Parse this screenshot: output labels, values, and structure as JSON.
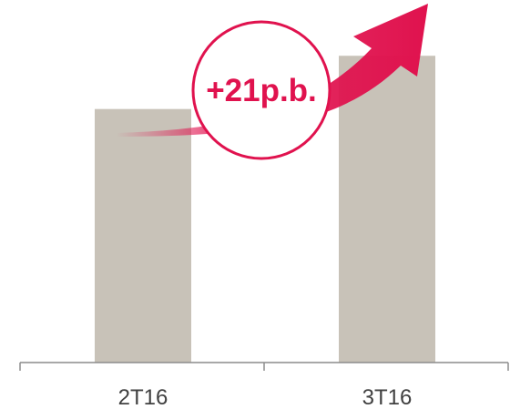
{
  "chart_data": {
    "type": "bar",
    "categories": [
      "2T16",
      "3T16"
    ],
    "values": [
      100,
      121
    ],
    "title": "",
    "xlabel": "",
    "ylabel": "",
    "ylim": [
      0,
      143
    ],
    "grid": false,
    "legend": "none",
    "annotation": {
      "text": "+21p.b.",
      "shape": "circle-badge-with-upward-arrow"
    }
  },
  "colors": {
    "bar": "#c8c2b8",
    "accent": "#e0124e",
    "axis": "#8c8c8c",
    "text": "#404040",
    "background": "#ffffff"
  }
}
